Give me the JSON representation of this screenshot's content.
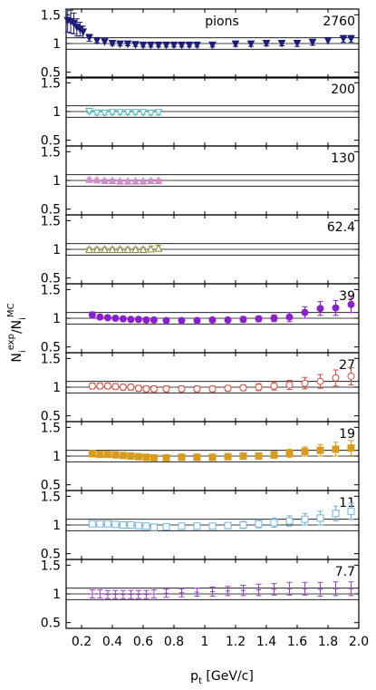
{
  "chart_data": {
    "type": "scatter",
    "title": "",
    "species_label": "pions",
    "xlabel_main": "p",
    "xlabel_sub": "t",
    "xlabel_unit": " [GeV/c]",
    "ylabel_main": "N",
    "ylabel_sub_1": "i",
    "ylabel_sup_1": "exp",
    "ylabel_slash": "/N",
    "ylabel_sub_2": "i",
    "ylabel_sup_2": "MC",
    "xlim": [
      0.1,
      2.0
    ],
    "ylim": [
      0.4,
      1.6
    ],
    "xticks": [
      0.2,
      0.4,
      0.6,
      0.8,
      1.0,
      1.2,
      1.4,
      1.6,
      1.8,
      2.0
    ],
    "xtick_labels": [
      "0.2",
      "0.4",
      "0.6",
      "0.8",
      "1",
      "1.2",
      "1.4",
      "1.6",
      "1.8",
      "2.0"
    ],
    "yticks": [
      0.5,
      1.0,
      1.5
    ],
    "ytick_labels": [
      "0.5",
      "1",
      "1.5"
    ],
    "reference_lines": [
      0.9,
      1.0,
      1.1
    ],
    "panels": [
      {
        "energy": "2760",
        "color": "#1c1c7a",
        "marker": "triangle-down-filled",
        "x": [
          0.11,
          0.13,
          0.15,
          0.17,
          0.19,
          0.21,
          0.25,
          0.3,
          0.35,
          0.4,
          0.45,
          0.5,
          0.55,
          0.6,
          0.65,
          0.7,
          0.75,
          0.8,
          0.85,
          0.9,
          0.95,
          1.05,
          1.2,
          1.3,
          1.4,
          1.5,
          1.6,
          1.7,
          1.8,
          1.9,
          1.95
        ],
        "y": [
          1.4,
          1.38,
          1.35,
          1.28,
          1.25,
          1.2,
          1.1,
          1.05,
          1.03,
          1.0,
          0.99,
          0.99,
          0.98,
          0.97,
          0.97,
          0.97,
          0.97,
          0.97,
          0.97,
          0.97,
          0.97,
          0.97,
          0.99,
          0.99,
          1.0,
          1.0,
          1.0,
          1.02,
          1.05,
          1.08,
          1.08
        ],
        "err": [
          0.2,
          0.2,
          0.18,
          0.15,
          0.12,
          0.1,
          0.06,
          0.04,
          0.03,
          0.03,
          0.03,
          0.03,
          0.03,
          0.03,
          0.03,
          0.03,
          0.03,
          0.03,
          0.03,
          0.03,
          0.03,
          0.03,
          0.04,
          0.04,
          0.04,
          0.04,
          0.05,
          0.05,
          0.05,
          0.06,
          0.06
        ]
      },
      {
        "energy": "200",
        "color": "#3dbfc4",
        "marker": "triangle-down-open",
        "x": [
          0.25,
          0.3,
          0.35,
          0.4,
          0.45,
          0.5,
          0.55,
          0.6,
          0.65,
          0.7
        ],
        "y": [
          1.0,
          0.97,
          0.97,
          0.98,
          0.98,
          0.98,
          0.98,
          0.98,
          0.97,
          0.98
        ],
        "err": [
          0.03,
          0.03,
          0.03,
          0.03,
          0.03,
          0.03,
          0.03,
          0.03,
          0.03,
          0.04
        ]
      },
      {
        "energy": "130",
        "color": "#d68ad0",
        "marker": "triangle-up-filled",
        "x": [
          0.25,
          0.3,
          0.35,
          0.4,
          0.45,
          0.5,
          0.55,
          0.6,
          0.65,
          0.7
        ],
        "y": [
          1.02,
          1.01,
          1.0,
          1.0,
          0.99,
          0.99,
          0.99,
          0.99,
          1.0,
          1.0
        ],
        "err": [
          0.02,
          0.02,
          0.02,
          0.02,
          0.02,
          0.02,
          0.02,
          0.02,
          0.02,
          0.02
        ]
      },
      {
        "energy": "62.4",
        "color": "#8b8b2e",
        "marker": "triangle-up-open",
        "x": [
          0.25,
          0.3,
          0.35,
          0.4,
          0.45,
          0.5,
          0.55,
          0.6,
          0.65,
          0.7
        ],
        "y": [
          1.0,
          1.0,
          1.0,
          1.0,
          1.0,
          1.0,
          1.0,
          1.0,
          1.01,
          1.02
        ],
        "err": [
          0.03,
          0.03,
          0.03,
          0.03,
          0.03,
          0.03,
          0.03,
          0.03,
          0.04,
          0.05
        ]
      },
      {
        "energy": "39",
        "color": "#8b1fd0",
        "marker": "circle-filled",
        "x": [
          0.27,
          0.32,
          0.37,
          0.42,
          0.47,
          0.52,
          0.57,
          0.62,
          0.67,
          0.75,
          0.85,
          0.95,
          1.05,
          1.15,
          1.25,
          1.35,
          1.45,
          1.55,
          1.65,
          1.75,
          1.85,
          1.95
        ],
        "y": [
          1.06,
          1.02,
          1.01,
          1.0,
          0.99,
          0.98,
          0.98,
          0.97,
          0.97,
          0.96,
          0.96,
          0.96,
          0.97,
          0.97,
          0.98,
          0.99,
          1.0,
          1.02,
          1.1,
          1.17,
          1.18,
          1.24
        ],
        "err": [
          0.05,
          0.04,
          0.04,
          0.04,
          0.04,
          0.04,
          0.04,
          0.04,
          0.04,
          0.04,
          0.04,
          0.04,
          0.04,
          0.04,
          0.05,
          0.05,
          0.06,
          0.08,
          0.1,
          0.12,
          0.13,
          0.14
        ]
      },
      {
        "energy": "27",
        "color": "#d94a3a",
        "marker": "circle-open",
        "x": [
          0.27,
          0.32,
          0.37,
          0.42,
          0.47,
          0.52,
          0.57,
          0.62,
          0.67,
          0.75,
          0.85,
          0.95,
          1.05,
          1.15,
          1.25,
          1.35,
          1.45,
          1.55,
          1.65,
          1.75,
          1.85,
          1.95
        ],
        "y": [
          1.02,
          1.02,
          1.02,
          1.01,
          1.0,
          1.0,
          0.98,
          0.97,
          0.97,
          0.97,
          0.97,
          0.97,
          0.97,
          0.98,
          0.99,
          1.0,
          1.02,
          1.04,
          1.07,
          1.1,
          1.16,
          1.19
        ],
        "err": [
          0.05,
          0.05,
          0.05,
          0.05,
          0.05,
          0.05,
          0.05,
          0.05,
          0.05,
          0.05,
          0.05,
          0.05,
          0.05,
          0.05,
          0.05,
          0.06,
          0.07,
          0.08,
          0.1,
          0.12,
          0.14,
          0.15
        ]
      },
      {
        "energy": "19",
        "color": "#d89b1a",
        "marker": "square-filled",
        "x": [
          0.27,
          0.32,
          0.37,
          0.42,
          0.47,
          0.52,
          0.57,
          0.62,
          0.67,
          0.75,
          0.85,
          0.95,
          1.05,
          1.15,
          1.25,
          1.35,
          1.45,
          1.55,
          1.65,
          1.75,
          1.85,
          1.95
        ],
        "y": [
          1.04,
          1.03,
          1.03,
          1.02,
          1.01,
          1.0,
          0.99,
          0.98,
          0.97,
          0.97,
          0.98,
          0.98,
          0.98,
          0.99,
          1.0,
          1.0,
          1.02,
          1.05,
          1.08,
          1.1,
          1.12,
          1.14
        ],
        "err": [
          0.04,
          0.04,
          0.04,
          0.04,
          0.04,
          0.04,
          0.04,
          0.04,
          0.04,
          0.04,
          0.04,
          0.04,
          0.04,
          0.05,
          0.05,
          0.05,
          0.06,
          0.07,
          0.08,
          0.1,
          0.12,
          0.13
        ]
      },
      {
        "energy": "11",
        "color": "#6cb4e0",
        "marker": "square-open",
        "x": [
          0.27,
          0.32,
          0.37,
          0.42,
          0.47,
          0.52,
          0.57,
          0.62,
          0.67,
          0.75,
          0.85,
          0.95,
          1.05,
          1.15,
          1.25,
          1.35,
          1.45,
          1.55,
          1.65,
          1.75,
          1.85,
          1.95
        ],
        "y": [
          1.02,
          1.02,
          1.02,
          1.01,
          1.0,
          1.0,
          0.99,
          0.98,
          0.96,
          0.97,
          0.98,
          0.98,
          0.98,
          0.99,
          1.0,
          1.02,
          1.04,
          1.07,
          1.1,
          1.12,
          1.2,
          1.24
        ],
        "err": [
          0.05,
          0.05,
          0.05,
          0.05,
          0.05,
          0.05,
          0.05,
          0.05,
          0.05,
          0.05,
          0.05,
          0.05,
          0.05,
          0.05,
          0.06,
          0.07,
          0.08,
          0.09,
          0.1,
          0.12,
          0.13,
          0.14
        ]
      },
      {
        "energy": "7.7",
        "color": "#9b3fd0",
        "marker": "none",
        "x": [
          0.27,
          0.32,
          0.37,
          0.42,
          0.47,
          0.52,
          0.57,
          0.62,
          0.67,
          0.75,
          0.85,
          0.95,
          1.05,
          1.15,
          1.25,
          1.35,
          1.45,
          1.55,
          1.65,
          1.75,
          1.85,
          1.95
        ],
        "y": [
          1.0,
          1.0,
          0.99,
          0.99,
          0.99,
          0.99,
          0.99,
          0.99,
          1.0,
          1.01,
          1.02,
          1.03,
          1.04,
          1.05,
          1.06,
          1.07,
          1.08,
          1.09,
          1.09,
          1.08,
          1.09,
          1.09
        ],
        "err": [
          0.07,
          0.07,
          0.07,
          0.07,
          0.07,
          0.07,
          0.07,
          0.07,
          0.07,
          0.07,
          0.07,
          0.07,
          0.08,
          0.08,
          0.09,
          0.1,
          0.1,
          0.11,
          0.11,
          0.12,
          0.12,
          0.12
        ]
      }
    ]
  }
}
